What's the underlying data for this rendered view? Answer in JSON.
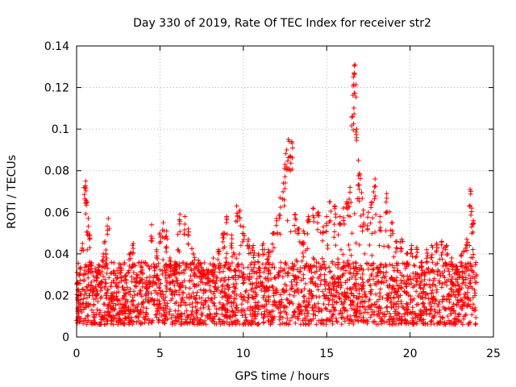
{
  "chart_data": {
    "type": "scatter",
    "title": "Day 330 of 2019, Rate Of TEC Index for receiver str2",
    "xlabel": "GPS time / hours",
    "ylabel": "ROTI / TECUs",
    "xlim": [
      0,
      25
    ],
    "ylim": [
      0,
      0.14
    ],
    "xticks": [
      0,
      5,
      10,
      15,
      20,
      25
    ],
    "xtick_labels": [
      "0",
      "5",
      "10",
      "15",
      "20",
      "25"
    ],
    "yticks": [
      0,
      0.02,
      0.04,
      0.06,
      0.08,
      0.1,
      0.12,
      0.14
    ],
    "ytick_labels": [
      "0",
      "0.02",
      "0.04",
      "0.06",
      "0.08",
      "0.1",
      "0.12",
      "0.14"
    ],
    "grid": true,
    "marker": "+",
    "color": "#ff0000",
    "series": [
      {
        "name": "ROTI",
        "points": [
          [
            0.05,
            0.026
          ],
          [
            0.2,
            0.033
          ],
          [
            0.35,
            0.045
          ],
          [
            0.5,
            0.072
          ],
          [
            0.55,
            0.075
          ],
          [
            0.6,
            0.065
          ],
          [
            0.7,
            0.057
          ],
          [
            0.8,
            0.049
          ],
          [
            1.0,
            0.024
          ],
          [
            1.2,
            0.031
          ],
          [
            1.4,
            0.026
          ],
          [
            1.6,
            0.04
          ],
          [
            1.7,
            0.046
          ],
          [
            1.8,
            0.038
          ],
          [
            1.9,
            0.057
          ],
          [
            2.1,
            0.02
          ],
          [
            2.4,
            0.028
          ],
          [
            2.7,
            0.033
          ],
          [
            2.9,
            0.023
          ],
          [
            3.2,
            0.04
          ],
          [
            3.4,
            0.045
          ],
          [
            3.6,
            0.03
          ],
          [
            3.9,
            0.036
          ],
          [
            4.2,
            0.027
          ],
          [
            4.5,
            0.054
          ],
          [
            4.8,
            0.042
          ],
          [
            5.0,
            0.05
          ],
          [
            5.2,
            0.055
          ],
          [
            5.4,
            0.051
          ],
          [
            5.6,
            0.038
          ],
          [
            5.9,
            0.036
          ],
          [
            6.2,
            0.059
          ],
          [
            6.5,
            0.058
          ],
          [
            6.7,
            0.052
          ],
          [
            7.0,
            0.04
          ],
          [
            7.3,
            0.037
          ],
          [
            7.6,
            0.032
          ],
          [
            7.9,
            0.031
          ],
          [
            8.2,
            0.038
          ],
          [
            8.5,
            0.042
          ],
          [
            8.8,
            0.05
          ],
          [
            9.0,
            0.058
          ],
          [
            9.3,
            0.049
          ],
          [
            9.6,
            0.063
          ],
          [
            9.8,
            0.061
          ],
          [
            10.0,
            0.053
          ],
          [
            10.3,
            0.047
          ],
          [
            10.6,
            0.044
          ],
          [
            10.9,
            0.04
          ],
          [
            11.2,
            0.045
          ],
          [
            11.5,
            0.042
          ],
          [
            11.8,
            0.05
          ],
          [
            12.0,
            0.057
          ],
          [
            12.2,
            0.067
          ],
          [
            12.4,
            0.074
          ],
          [
            12.5,
            0.083
          ],
          [
            12.6,
            0.09
          ],
          [
            12.7,
            0.095
          ],
          [
            12.8,
            0.087
          ],
          [
            12.9,
            0.094
          ],
          [
            13.1,
            0.059
          ],
          [
            13.3,
            0.052
          ],
          [
            13.6,
            0.051
          ],
          [
            13.9,
            0.058
          ],
          [
            14.2,
            0.062
          ],
          [
            14.5,
            0.06
          ],
          [
            14.8,
            0.053
          ],
          [
            15.0,
            0.058
          ],
          [
            15.2,
            0.065
          ],
          [
            15.5,
            0.063
          ],
          [
            15.8,
            0.058
          ],
          [
            16.0,
            0.062
          ],
          [
            16.2,
            0.065
          ],
          [
            16.4,
            0.072
          ],
          [
            16.55,
            0.106
          ],
          [
            16.6,
            0.125
          ],
          [
            16.65,
            0.127
          ],
          [
            16.7,
            0.131
          ],
          [
            16.8,
            0.1
          ],
          [
            16.9,
            0.085
          ],
          [
            17.0,
            0.078
          ],
          [
            17.2,
            0.061
          ],
          [
            17.5,
            0.06
          ],
          [
            17.7,
            0.065
          ],
          [
            17.9,
            0.076
          ],
          [
            18.2,
            0.058
          ],
          [
            18.6,
            0.069
          ],
          [
            18.9,
            0.055
          ],
          [
            19.2,
            0.046
          ],
          [
            19.5,
            0.047
          ],
          [
            19.8,
            0.04
          ],
          [
            20.1,
            0.044
          ],
          [
            20.4,
            0.043
          ],
          [
            20.7,
            0.036
          ],
          [
            21.0,
            0.042
          ],
          [
            21.3,
            0.044
          ],
          [
            21.6,
            0.045
          ],
          [
            21.9,
            0.046
          ],
          [
            22.2,
            0.044
          ],
          [
            22.5,
            0.038
          ],
          [
            22.8,
            0.034
          ],
          [
            23.1,
            0.04
          ],
          [
            23.4,
            0.047
          ],
          [
            23.6,
            0.071
          ],
          [
            23.7,
            0.062
          ],
          [
            23.8,
            0.056
          ]
        ],
        "baseline_band": [
          0.006,
          0.036
        ]
      }
    ]
  }
}
